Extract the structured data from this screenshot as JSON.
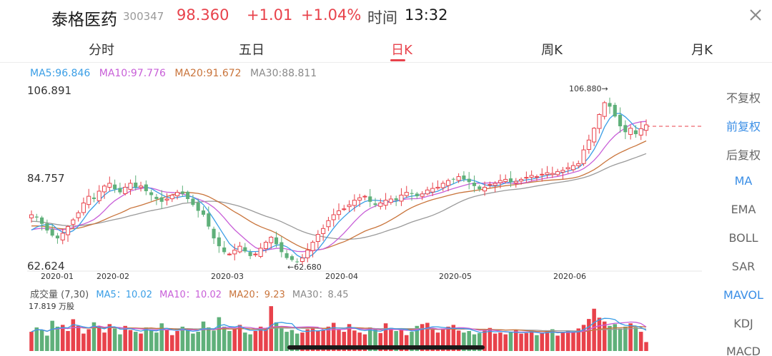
{
  "header": {
    "stock_name": "泰格医药",
    "stock_code": "300347",
    "price": "98.360",
    "change": "+1.01",
    "change_pct": "+1.04%",
    "time_label": "时间",
    "time": "13:32"
  },
  "tabs": [
    {
      "label": "分时"
    },
    {
      "label": "五日"
    },
    {
      "label": "日K",
      "active": true
    },
    {
      "label": "周K"
    },
    {
      "label": "月K"
    }
  ],
  "ma_legend": {
    "ma5": "MA5:96.846",
    "ma10": "MA10:97.776",
    "ma20": "MA20:91.672",
    "ma30": "MA30:88.811"
  },
  "price_axis": {
    "high": "106.891",
    "mid": "84.757",
    "low": "62.624"
  },
  "annotations": {
    "max_label": "106.880→",
    "min_label": "←62.680"
  },
  "date_labels": [
    "2020-01",
    "2020-02",
    "2020-03",
    "2020-04",
    "2020-05",
    "2020-06"
  ],
  "sidebar": [
    {
      "label": "不复权"
    },
    {
      "label": "前复权",
      "active": true
    },
    {
      "label": "后复权"
    },
    {
      "label": "MA",
      "active": true
    },
    {
      "label": "EMA"
    },
    {
      "label": "BOLL"
    },
    {
      "label": "SAR"
    },
    {
      "label": "MAVOL",
      "active": true
    },
    {
      "label": "KDJ"
    },
    {
      "label": "MACD"
    }
  ],
  "volume_legend": {
    "title": "成交量 (7,30)",
    "ma5": "MA5：10.02",
    "ma10": "MA10：10.02",
    "ma20": "MA20：9.23",
    "ma30": "MA30：8.45"
  },
  "volume_max": "17.819 万股",
  "colors": {
    "up": "#e8424b",
    "down": "#5fb07a",
    "ma5": "#3a9ee6",
    "ma10": "#c85fd8",
    "ma20": "#c9743b",
    "ma30": "#9a9a9a",
    "accent": "#e8424b"
  },
  "chart_data": {
    "type": "candlestick",
    "price_range": [
      62.624,
      106.891
    ],
    "last_price": 98.36,
    "period_high": 106.88,
    "period_low": 62.68,
    "close_series": [
      75.5,
      74.8,
      73.2,
      71.5,
      70.2,
      69.5,
      70.8,
      72.5,
      74.2,
      76.0,
      78.5,
      80.2,
      79.5,
      81.5,
      82.8,
      83.5,
      82.0,
      81.2,
      82.5,
      83.5,
      82.5,
      82.8,
      81.5,
      80.5,
      79.5,
      78.8,
      79.5,
      80.5,
      81.2,
      80.8,
      79.5,
      78.0,
      76.5,
      75.5,
      72.5,
      69.5,
      67.5,
      66.0,
      65.5,
      66.5,
      67.5,
      66.2,
      65.0,
      65.5,
      67.0,
      68.5,
      69.8,
      68.0,
      66.0,
      64.5,
      64.0,
      63.5,
      64.5,
      66.5,
      68.5,
      70.5,
      72.0,
      74.0,
      75.5,
      76.5,
      77.0,
      78.0,
      79.2,
      79.8,
      80.2,
      78.8,
      78.0,
      78.5,
      79.2,
      79.5,
      79.2,
      80.5,
      81.2,
      80.8,
      80.2,
      80.8,
      81.8,
      82.2,
      82.5,
      83.5,
      84.2,
      84.5,
      85.2,
      84.5,
      83.8,
      82.8,
      82.0,
      82.5,
      83.2,
      83.5,
      84.2,
      84.5,
      83.8,
      84.0,
      84.5,
      85.0,
      85.5,
      85.2,
      85.8,
      86.2,
      86.0,
      86.5,
      86.8,
      87.5,
      88.0,
      88.5,
      92.0,
      94.5,
      97.5,
      101.0,
      104.0,
      103.0,
      100.5,
      98.0,
      96.5,
      97.5,
      96.0,
      97.4,
      98.36
    ],
    "volume_series": [
      7.5,
      9.2,
      8.1,
      6.0,
      11.8,
      9.5,
      10.2,
      7.8,
      12.4,
      9.8,
      6.8,
      8.5,
      11.2,
      9.6,
      7.2,
      10.5,
      8.8,
      6.5,
      9.8,
      8.2,
      7.5,
      6.8,
      9.2,
      8.5,
      7.2,
      10.8,
      8.5,
      6.2,
      7.8,
      9.5,
      8.2,
      6.8,
      7.5,
      11.5,
      9.2,
      8.0,
      13.2,
      9.5,
      7.8,
      8.5,
      10.2,
      7.2,
      6.5,
      7.8,
      9.5,
      8.8,
      17.5,
      11.2,
      9.0,
      7.5,
      8.2,
      6.8,
      7.2,
      8.5,
      9.0,
      7.8,
      8.2,
      9.5,
      11.0,
      8.2,
      7.5,
      10.5,
      8.0,
      7.2,
      6.5,
      9.2,
      8.5,
      7.0,
      10.8,
      9.0,
      7.8,
      8.5,
      6.2,
      7.5,
      9.8,
      10.5,
      11.0,
      8.5,
      7.2,
      8.8,
      9.5,
      10.2,
      8.0,
      7.2,
      7.8,
      6.5,
      7.0,
      8.2,
      9.0,
      6.8,
      7.2,
      6.5,
      7.5,
      8.2,
      6.8,
      7.0,
      7.8,
      6.2,
      7.0,
      7.8,
      8.5,
      6.0,
      7.2,
      8.0,
      7.5,
      8.8,
      10.2,
      12.5,
      16.5,
      13.0,
      11.5,
      9.8,
      10.5,
      8.8,
      9.5,
      10.8,
      9.2,
      7.5,
      3.5
    ]
  }
}
